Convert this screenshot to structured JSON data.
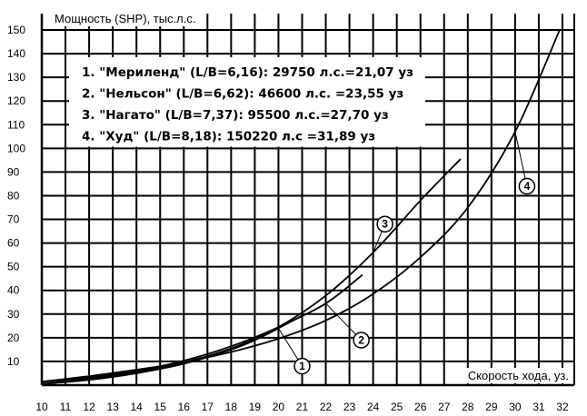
{
  "chart_data": {
    "type": "line",
    "ylabel": "Мощность (SHP), тыс.л.с.",
    "xlabel": "Скорость хода, уз.",
    "xlim": [
      10,
      32.5
    ],
    "ylim": [
      0,
      150
    ],
    "x_ticks": [
      10,
      11,
      12,
      13,
      14,
      15,
      16,
      17,
      18,
      19,
      20,
      21,
      22,
      23,
      24,
      25,
      26,
      27,
      28,
      29,
      30,
      31,
      32
    ],
    "y_ticks": [
      {
        "value": 10,
        "label": "10"
      },
      {
        "value": 20,
        "label": "20"
      },
      {
        "value": 30,
        "label": "30"
      },
      {
        "value": 40,
        "label": "40"
      },
      {
        "value": 50,
        "label": "50"
      },
      {
        "value": 60,
        "label": "60"
      },
      {
        "value": 70,
        "label": "70"
      },
      {
        "value": 80,
        "label": "80"
      },
      {
        "value": 90,
        "label": "90"
      },
      {
        "value": 100,
        "label": "100"
      },
      {
        "value": 110,
        "label": "110"
      },
      {
        "value": 120,
        "label": "120"
      },
      {
        "value": 130,
        "label": "130"
      },
      {
        "value": 140,
        "label": "140"
      },
      {
        "value": 150,
        "label": "150"
      }
    ],
    "grid": true,
    "legend_lines": [
      "1. \"Мериленд\" (L/B=6,16): 29750 л.с.=21,07 уз",
      "2. \"Нельсон\" (L/B=6,62): 46600 л.с. =23,55 уз",
      "3. \"Нагато\" (L/B=7,37): 95500 л.с.=27,70 уз",
      "4. \"Худ\" (L/B=8,18): 150220 л.с =31,89 уз"
    ],
    "series": [
      {
        "marker": "1",
        "x": [
          10,
          12,
          14,
          16,
          18,
          19,
          20,
          21.07
        ],
        "y": [
          0.5,
          2.2,
          5,
          9,
          15,
          19,
          24,
          29.75
        ],
        "marker_at": [
          21,
          8
        ]
      },
      {
        "marker": "2",
        "x": [
          10,
          12,
          14,
          16,
          18,
          20,
          22,
          23.55
        ],
        "y": [
          1.3,
          3.2,
          6,
          10.3,
          16.4,
          24.5,
          34.5,
          46.6
        ],
        "marker_at": [
          23.5,
          19
        ]
      },
      {
        "marker": "3",
        "x": [
          10,
          12,
          14,
          16,
          18,
          20,
          22,
          24,
          26,
          27.7
        ],
        "y": [
          0.5,
          2.7,
          5.6,
          9.6,
          15.5,
          24.5,
          37.8,
          56,
          78,
          95.5
        ],
        "marker_at": [
          24.5,
          68
        ]
      },
      {
        "marker": "4",
        "x": [
          10,
          12,
          14,
          16,
          18,
          20,
          22,
          24,
          26,
          28,
          30,
          31.89
        ],
        "y": [
          1.5,
          3.8,
          6.5,
          9.7,
          14,
          19.6,
          27.3,
          38.5,
          54,
          75,
          107,
          150.2
        ],
        "marker_at": [
          30.5,
          84
        ]
      }
    ]
  }
}
